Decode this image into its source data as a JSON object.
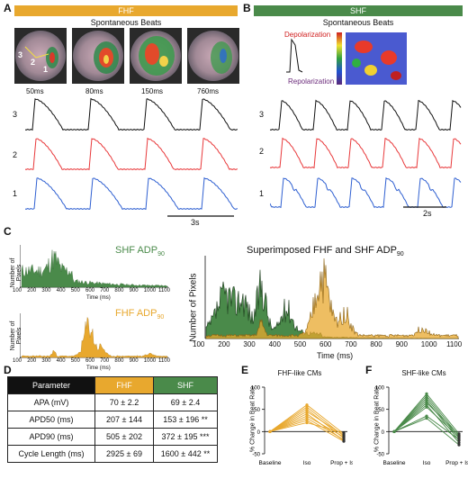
{
  "panels": {
    "a": "A",
    "b": "B",
    "c": "C",
    "d": "D",
    "e": "E",
    "f": "F"
  },
  "colors": {
    "fhf": "#E8A82E",
    "shf": "#4A8A4A",
    "trace_black": "#111111",
    "trace_red": "#E8383A",
    "trace_blue": "#2E5FD1",
    "depol": "#D02020",
    "repol": "#6A2A7A"
  },
  "panel_a": {
    "header": "FHF",
    "subtitle": "Spontaneous Beats",
    "frames": [
      "50ms",
      "80ms",
      "150ms",
      "760ms"
    ],
    "dish_marks": [
      "3",
      "2",
      "1"
    ],
    "trace_labels": [
      "3",
      "2",
      "1"
    ],
    "scalebar": "3s"
  },
  "panel_b": {
    "header": "SHF",
    "subtitle": "Spontaneous Beats",
    "depolarization": "Depolarization",
    "repolarization": "Repolarization",
    "trace_labels": [
      "3",
      "2",
      "1"
    ],
    "scalebar": "2s"
  },
  "panel_c": {
    "shf_label": "SHF ADP",
    "fhf_label": "FHF ADP",
    "sub": "90",
    "ylabel_small": "Number of Pixels",
    "xlabel_small": "Time (ms)",
    "big_title": "Superimposed FHF and SHF ADP",
    "big_ylabel": "Number of Pixels",
    "big_xlabel": "Time (ms)",
    "xticks": [
      "100",
      "200",
      "300",
      "400",
      "500",
      "600",
      "700",
      "800",
      "900",
      "1000",
      "1100"
    ]
  },
  "table": {
    "header": [
      "Parameter",
      "FHF",
      "SHF"
    ],
    "rows": [
      [
        "APA (mV)",
        "70 ± 2.2",
        "69 ± 2.4"
      ],
      [
        "APD50 (ms)",
        "207 ± 144",
        "153 ± 196 **"
      ],
      [
        "APD90 (ms)",
        "505 ± 202",
        "372 ± 195 ***"
      ],
      [
        "Cycle Length (ms)",
        "2925 ± 69",
        "1600 ± 442 **"
      ]
    ]
  },
  "panel_e": {
    "title": "FHF-like CMs",
    "ylabel": "% Change in Beat Rate",
    "yticks": [
      "100",
      "50",
      "0",
      "-50"
    ],
    "categories": [
      "Baseline",
      "Iso",
      "Prop + Iso"
    ]
  },
  "panel_f": {
    "title": "SHF-like CMs",
    "ylabel": "% Change in Beat Rate",
    "yticks": [
      "100",
      "50",
      "0",
      "-50"
    ],
    "categories": [
      "Baseline",
      "Iso",
      "Prop + Iso"
    ]
  },
  "chart_data": [
    {
      "type": "line",
      "id": "E",
      "title": "FHF-like CMs",
      "ylabel": "% Change in Beat Rate",
      "categories": [
        "Baseline",
        "Iso",
        "Prop + Iso"
      ],
      "ylim": [
        -50,
        100
      ],
      "series": [
        {
          "values": [
            0,
            60,
            -5
          ]
        },
        {
          "values": [
            0,
            55,
            -10
          ]
        },
        {
          "values": [
            0,
            50,
            -15
          ]
        },
        {
          "values": [
            0,
            45,
            -8
          ]
        },
        {
          "values": [
            0,
            40,
            -20
          ]
        },
        {
          "values": [
            0,
            35,
            -12
          ]
        },
        {
          "values": [
            0,
            30,
            -18
          ]
        },
        {
          "values": [
            0,
            25,
            -22
          ]
        },
        {
          "values": [
            0,
            20,
            -3
          ]
        }
      ]
    },
    {
      "type": "line",
      "id": "F",
      "title": "SHF-like CMs",
      "ylabel": "% Change in Beat Rate",
      "categories": [
        "Baseline",
        "Iso",
        "Prop + Iso"
      ],
      "ylim": [
        -50,
        100
      ],
      "series": [
        {
          "values": [
            0,
            85,
            -5
          ]
        },
        {
          "values": [
            0,
            80,
            -10
          ]
        },
        {
          "values": [
            0,
            75,
            -15
          ]
        },
        {
          "values": [
            0,
            70,
            -20
          ]
        },
        {
          "values": [
            0,
            65,
            -8
          ]
        },
        {
          "values": [
            0,
            60,
            -25
          ]
        },
        {
          "values": [
            0,
            55,
            -12
          ]
        },
        {
          "values": [
            0,
            35,
            -18
          ]
        },
        {
          "values": [
            0,
            30,
            -30
          ]
        }
      ]
    }
  ]
}
